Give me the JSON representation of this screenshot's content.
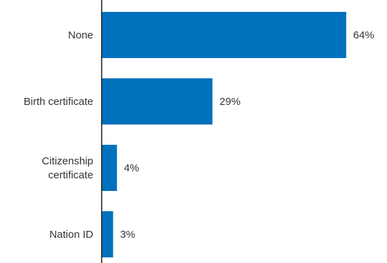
{
  "chart_data": {
    "type": "bar",
    "orientation": "horizontal",
    "categories": [
      [
        "None"
      ],
      [
        "Birth certificate"
      ],
      [
        "Citizenship",
        "certificate"
      ],
      [
        "Nation ID"
      ]
    ],
    "values": [
      64,
      29,
      4,
      3
    ],
    "value_labels": [
      "64%",
      "29%",
      "4%",
      "3%"
    ],
    "unit": "%",
    "bar_color": "#0071bc",
    "axis_color": "#1a1a1a",
    "grid": false,
    "legend": "none",
    "title": "",
    "xlabel": "",
    "ylabel": ""
  }
}
